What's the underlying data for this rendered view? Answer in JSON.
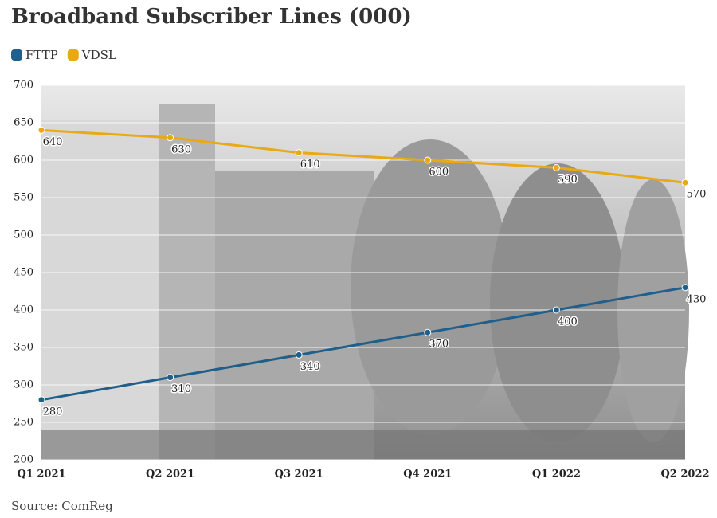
{
  "chart_data": {
    "type": "line",
    "title": "Broadband Subscriber Lines (000)",
    "categories": [
      "Q1 2021",
      "Q2 2021",
      "Q3 2021",
      "Q4 2021",
      "Q1 2022",
      "Q2 2022"
    ],
    "series": [
      {
        "name": "FTTP",
        "color": "#1f5f8b",
        "values": [
          280,
          310,
          340,
          370,
          400,
          430
        ]
      },
      {
        "name": "VDSL",
        "color": "#e8a915",
        "values": [
          640,
          630,
          610,
          600,
          590,
          570
        ]
      }
    ],
    "ylim": [
      200,
      700
    ],
    "yticks": [
      200,
      250,
      300,
      350,
      400,
      450,
      500,
      550,
      600,
      650,
      700
    ],
    "grid": true,
    "legend": "top-left",
    "source": "Source: ComReg"
  }
}
